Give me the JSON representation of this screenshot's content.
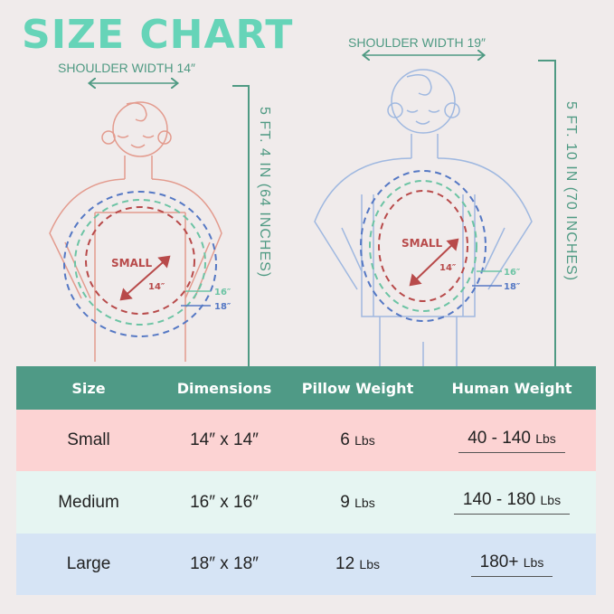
{
  "title": "SIZE CHART",
  "colors": {
    "title": "#66d4b8",
    "accent": "#4f9a86",
    "small": "#b84a4a",
    "medium": "#6cc4a4",
    "large": "#5578c4",
    "small_row": "#fcd3d3",
    "medium_row": "#e6f5f2",
    "large_row": "#d6e4f5"
  },
  "left_figure": {
    "shoulder_label": "SHOULDER WIDTH 14″",
    "height_label": "5 FT. 4 IN (64 INCHES)",
    "pillow_label": "SMALL",
    "diag_label": "14″",
    "m_label": "16″",
    "l_label": "18″"
  },
  "right_figure": {
    "shoulder_label": "SHOULDER WIDTH 19″",
    "height_label": "5 FT. 10 IN (70 INCHES)",
    "pillow_label": "SMALL",
    "diag_label": "14″",
    "m_label": "16″",
    "l_label": "18″"
  },
  "table": {
    "headers": [
      "Size",
      "Dimensions",
      "Pillow Weight",
      "Human Weight"
    ],
    "rows": [
      {
        "size": "Small",
        "dimensions": "14″ x 14″",
        "pillow": "6",
        "pillow_unit": "Lbs",
        "human": "40 - 140",
        "human_unit": "Lbs"
      },
      {
        "size": "Medium",
        "dimensions": "16″ x 16″",
        "pillow": "9",
        "pillow_unit": "Lbs",
        "human": "140 - 180",
        "human_unit": "Lbs"
      },
      {
        "size": "Large",
        "dimensions": "18″ x 18″",
        "pillow": "12",
        "pillow_unit": "Lbs",
        "human": "180+",
        "human_unit": "Lbs"
      }
    ]
  }
}
